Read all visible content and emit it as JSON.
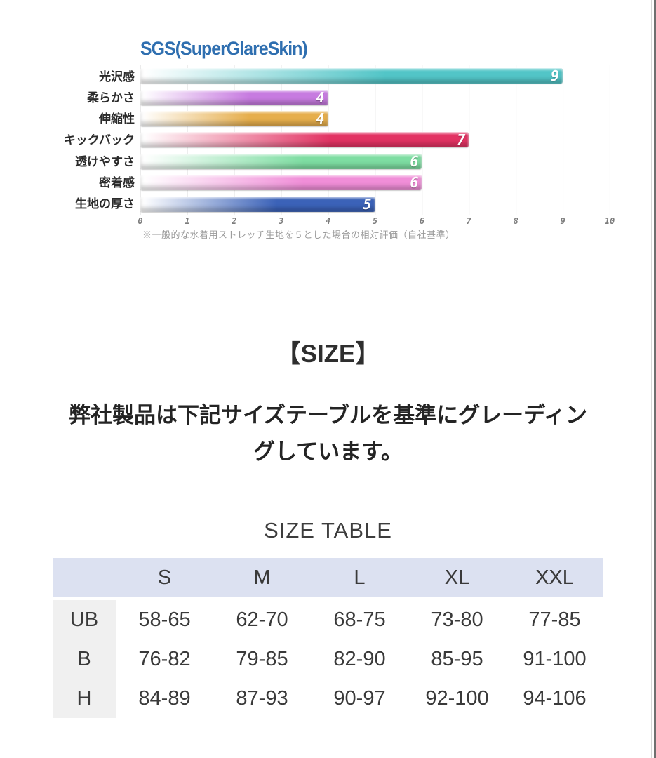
{
  "ui": {
    "size_heading": "【SIZE】",
    "size_description": "弊社製品は下記サイズテーブルを基準にグレーディン\nグしています。"
  },
  "chart_data": [
    {
      "type": "bar",
      "orientation": "horizontal",
      "title": "SGS(SuperGlareSkin)",
      "title_color": "#2f6fb0",
      "categories": [
        "光沢感",
        "柔らかさ",
        "伸縮性",
        "キックバック",
        "透けやすさ",
        "密着感",
        "生地の厚さ"
      ],
      "values": [
        9,
        4,
        4,
        7,
        6,
        6,
        5
      ],
      "bar_colors": [
        "#52c5c7",
        "#c77be0",
        "#e6ae4c",
        "#e23363",
        "#7edda2",
        "#f08ed8",
        "#3b62b8"
      ],
      "bar_gradient": "white fading to color, left to right",
      "xlim": [
        0,
        10
      ],
      "x_ticks": [
        "0",
        "1",
        "2",
        "3",
        "4",
        "5",
        "6",
        "7",
        "8",
        "9",
        "10"
      ],
      "grid": true,
      "legend": false,
      "value_labels_shown": true,
      "annotation": "※一般的な水着用ストレッチ生地を５とした場合の相対評価（自社基準）"
    },
    {
      "type": "table",
      "title": "SIZE TABLE",
      "columns": [
        "",
        "S",
        "M",
        "L",
        "XL",
        "XXL"
      ],
      "rows": [
        [
          "UB",
          "58-65",
          "62-70",
          "68-75",
          "73-80",
          "77-85"
        ],
        [
          "B",
          "76-82",
          "79-85",
          "82-90",
          "85-95",
          "91-100"
        ],
        [
          "H",
          "84-89",
          "87-93",
          "90-97",
          "92-100",
          "94-106"
        ]
      ],
      "header_bg": "#dce1f1",
      "row_header_bg": "#f0f0f0"
    }
  ]
}
